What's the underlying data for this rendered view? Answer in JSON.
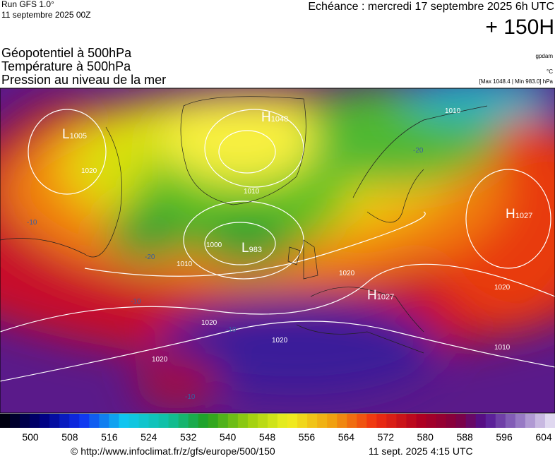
{
  "header": {
    "run": "Run GFS 1.0°",
    "run_date": "11 septembre 2025 00Z",
    "echeance": "Echéance : mercredi 17 septembre 2025 6h UTC",
    "step": "+ 150H"
  },
  "legend": {
    "lines": [
      "Géopotentiel à 500hPa",
      "Température à 500hPa",
      "Pression au niveau de la mer"
    ],
    "units": [
      "gpdam",
      "°C",
      "[Max 1048.4 | Min 983.0] hPa"
    ]
  },
  "map": {
    "centers": [
      {
        "letter": "L",
        "value": "1005"
      },
      {
        "letter": "H",
        "value": "1048"
      },
      {
        "letter": "L",
        "value": "983"
      },
      {
        "letter": "H",
        "value": "1027"
      },
      {
        "letter": "H",
        "value": "1027"
      }
    ],
    "isobar_labels": [
      "1020",
      "1010",
      "1000",
      "1010",
      "1020",
      "1020",
      "1020",
      "1010",
      "1020",
      "1010",
      "1020"
    ],
    "temp_labels": [
      "-10",
      "-20",
      "-20",
      "-10",
      "-10",
      "-10"
    ]
  },
  "colorbar": {
    "labels": [
      "500",
      "508",
      "516",
      "524",
      "532",
      "540",
      "548",
      "556",
      "564",
      "572",
      "580",
      "588",
      "596",
      "604"
    ]
  },
  "footer": {
    "url": "© http://www.infoclimat.fr/z/gfs/europe/500/150",
    "time": "11 sept. 2025  4:15 UTC"
  }
}
